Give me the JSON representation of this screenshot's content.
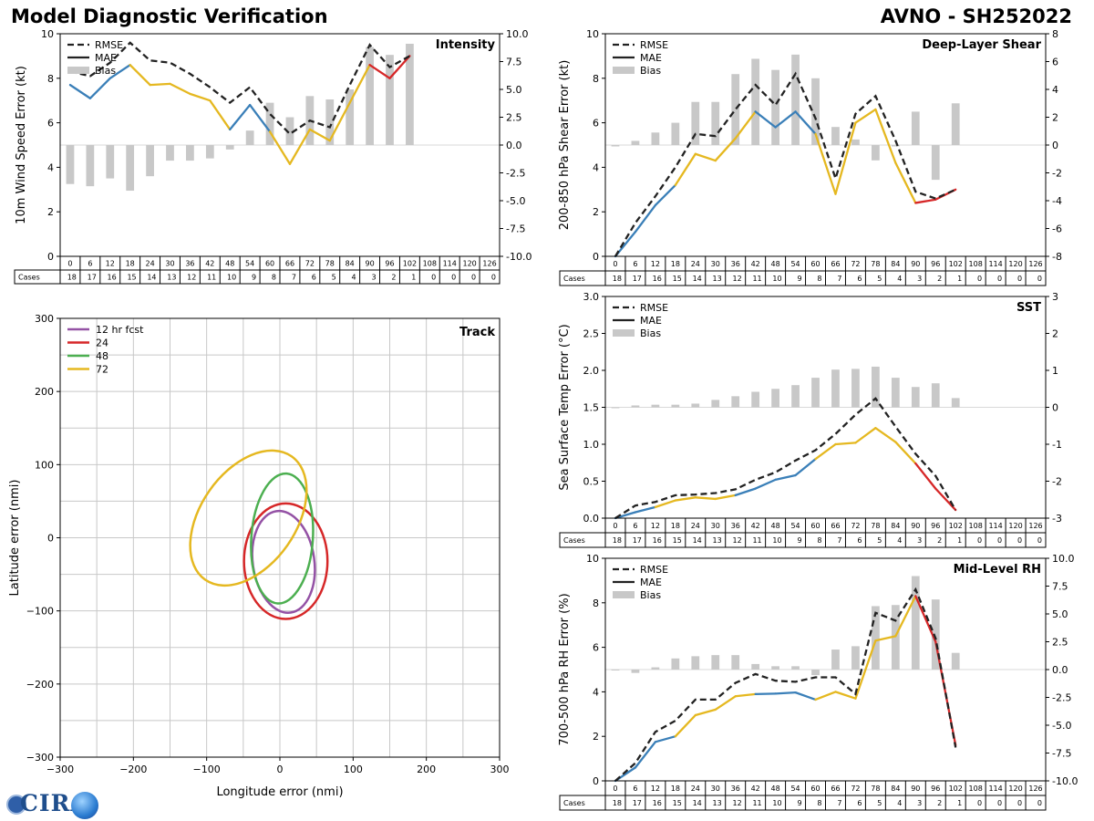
{
  "header": {
    "title_left": "Model Diagnostic Verification",
    "title_right": "AVNO - SH252022"
  },
  "logo": {
    "text": "CIRA"
  },
  "colors": {
    "rmse": "#222222",
    "bias": "#c8c8c8",
    "blue": "#3a7fb8",
    "yellow": "#e5b820",
    "red": "#d62728",
    "purple": "#9452a5",
    "green": "#4caf50",
    "grid": "#c8c8c8"
  },
  "chart_data": [
    {
      "id": "intensity",
      "type": "line",
      "title": "Intensity",
      "ylabel": "10m Wind Speed Error (kt)",
      "ylim": [
        0,
        10
      ],
      "yticks": [
        0,
        2,
        4,
        6,
        8,
        10
      ],
      "y2lim": [
        -10,
        10
      ],
      "y2ticks": [
        "-10.0",
        "-7.5",
        "-5.0",
        "-2.5",
        "0.0",
        "2.5",
        "5.0",
        "7.5",
        "10.0"
      ],
      "legend": [
        "RMSE",
        "MAE",
        "Bias"
      ],
      "x": [
        0,
        6,
        12,
        18,
        24,
        30,
        36,
        42,
        48,
        54,
        60,
        66,
        72,
        78,
        84,
        90,
        96,
        102,
        108,
        114,
        120,
        126
      ],
      "cases": [
        18,
        17,
        16,
        15,
        14,
        13,
        12,
        11,
        10,
        9,
        8,
        7,
        6,
        5,
        4,
        3,
        2,
        1,
        0,
        0,
        0,
        0
      ],
      "rmse": [
        8.3,
        8.1,
        8.7,
        9.6,
        8.8,
        8.7,
        8.2,
        7.6,
        6.9,
        7.6,
        6.4,
        5.5,
        6.1,
        5.8,
        7.7,
        9.5,
        8.5,
        9.0
      ],
      "mae": [
        7.7,
        7.1,
        8.0,
        8.6,
        7.7,
        7.75,
        7.3,
        7.0,
        5.7,
        6.8,
        5.6,
        4.15,
        5.7,
        5.2,
        6.9,
        8.6,
        8.0,
        9.0
      ],
      "bias": [
        -3.5,
        -3.7,
        -3.0,
        -4.1,
        -2.8,
        -1.4,
        -1.4,
        -1.2,
        -0.4,
        1.3,
        3.8,
        2.5,
        4.4,
        4.1,
        5.0,
        8.8,
        8.1,
        9.1
      ]
    },
    {
      "id": "shear",
      "type": "line",
      "title": "Deep-Layer Shear",
      "ylabel": "200-850 hPa Shear Error (kt)",
      "ylim": [
        0,
        10
      ],
      "yticks": [
        0,
        2,
        4,
        6,
        8,
        10
      ],
      "y2lim": [
        -8,
        8
      ],
      "y2ticks": [
        "-8",
        "-6",
        "-4",
        "-2",
        "0",
        "2",
        "4",
        "6",
        "8"
      ],
      "legend": [
        "RMSE",
        "MAE",
        "Bias"
      ],
      "x": [
        0,
        6,
        12,
        18,
        24,
        30,
        36,
        42,
        48,
        54,
        60,
        66,
        72,
        78,
        84,
        90,
        96,
        102,
        108,
        114,
        120,
        126
      ],
      "cases": [
        18,
        17,
        16,
        15,
        14,
        13,
        12,
        11,
        10,
        9,
        8,
        7,
        6,
        5,
        4,
        3,
        2,
        1,
        0,
        0,
        0,
        0
      ],
      "rmse": [
        0.0,
        1.5,
        2.7,
        4.0,
        5.5,
        5.4,
        6.6,
        7.7,
        6.8,
        8.2,
        6.2,
        3.5,
        6.4,
        7.2,
        5.2,
        2.9,
        2.6,
        3.0
      ],
      "mae": [
        0.0,
        1.1,
        2.3,
        3.2,
        4.6,
        4.3,
        5.3,
        6.5,
        5.8,
        6.5,
        5.5,
        2.8,
        6.0,
        6.6,
        4.2,
        2.4,
        2.55,
        3.0
      ],
      "bias": [
        -0.1,
        0.3,
        0.9,
        1.6,
        3.1,
        3.1,
        5.1,
        6.2,
        5.4,
        6.5,
        4.8,
        1.3,
        0.4,
        -1.1,
        -0.1,
        2.4,
        -2.5,
        3.0
      ]
    },
    {
      "id": "sst",
      "type": "line",
      "title": "SST",
      "ylabel": "Sea Surface Temp Error (°C)",
      "ylim": [
        0,
        3
      ],
      "yticks": [
        "0.0",
        "0.5",
        "1.0",
        "1.5",
        "2.0",
        "2.5",
        "3.0"
      ],
      "y2lim": [
        -3,
        3
      ],
      "y2ticks": [
        "-3",
        "-2",
        "-1",
        "0",
        "1",
        "2",
        "3"
      ],
      "legend": [
        "RMSE",
        "MAE",
        "Bias"
      ],
      "x": [
        0,
        6,
        12,
        18,
        24,
        30,
        36,
        42,
        48,
        54,
        60,
        66,
        72,
        78,
        84,
        90,
        96,
        102,
        108,
        114,
        120,
        126
      ],
      "cases": [
        18,
        17,
        16,
        15,
        14,
        13,
        12,
        11,
        10,
        9,
        8,
        7,
        6,
        5,
        4,
        3,
        2,
        1,
        0,
        0,
        0,
        0
      ],
      "rmse": [
        0.0,
        0.17,
        0.22,
        0.31,
        0.32,
        0.34,
        0.39,
        0.52,
        0.62,
        0.78,
        0.92,
        1.14,
        1.4,
        1.62,
        1.24,
        0.87,
        0.57,
        0.11
      ],
      "mae": [
        0.0,
        0.08,
        0.15,
        0.24,
        0.28,
        0.26,
        0.31,
        0.4,
        0.52,
        0.58,
        0.8,
        1.0,
        1.02,
        1.22,
        1.03,
        0.74,
        0.4,
        0.11
      ],
      "bias": [
        0.0,
        0.05,
        0.07,
        0.07,
        0.1,
        0.2,
        0.3,
        0.42,
        0.5,
        0.6,
        0.8,
        1.02,
        1.04,
        1.1,
        0.8,
        0.55,
        0.65,
        0.25
      ]
    },
    {
      "id": "rh",
      "type": "line",
      "title": "Mid-Level RH",
      "ylabel": "700-500 hPa RH Error (%)",
      "ylim": [
        0,
        10
      ],
      "yticks": [
        0,
        2,
        4,
        6,
        8,
        10
      ],
      "y2lim": [
        -10,
        10
      ],
      "y2ticks": [
        "-10.0",
        "-7.5",
        "-5.0",
        "-2.5",
        "0.0",
        "2.5",
        "5.0",
        "7.5",
        "10.0"
      ],
      "legend": [
        "RMSE",
        "MAE",
        "Bias"
      ],
      "x": [
        0,
        6,
        12,
        18,
        24,
        30,
        36,
        42,
        48,
        54,
        60,
        66,
        72,
        78,
        84,
        90,
        96,
        102,
        108,
        114,
        120,
        126
      ],
      "cases": [
        18,
        17,
        16,
        15,
        14,
        13,
        12,
        11,
        10,
        9,
        8,
        7,
        6,
        5,
        4,
        3,
        2,
        1,
        0,
        0,
        0,
        0
      ],
      "rmse": [
        0.0,
        0.8,
        2.2,
        2.7,
        3.65,
        3.65,
        4.4,
        4.8,
        4.5,
        4.45,
        4.65,
        4.65,
        3.9,
        7.55,
        7.2,
        8.6,
        6.4,
        1.5
      ],
      "mae": [
        0.0,
        0.6,
        1.75,
        2.0,
        2.95,
        3.2,
        3.8,
        3.9,
        3.92,
        3.97,
        3.65,
        4.0,
        3.7,
        6.3,
        6.5,
        8.3,
        6.25,
        1.6
      ],
      "bias": [
        -0.05,
        -0.3,
        0.2,
        1.0,
        1.2,
        1.3,
        1.3,
        0.5,
        0.3,
        0.3,
        -0.5,
        1.8,
        2.1,
        5.7,
        5.8,
        8.4,
        6.3,
        1.5
      ]
    },
    {
      "id": "track",
      "type": "scatter",
      "title": "Track",
      "xlabel": "Longitude error (nmi)",
      "ylabel": "Latitude error (nmi)",
      "xlim": [
        -300,
        300
      ],
      "ylim": [
        -300,
        300
      ],
      "xticks": [
        "−300",
        "−200",
        "−100",
        "0",
        "100",
        "200",
        "300"
      ],
      "yticks": [
        "−300",
        "−200",
        "−100",
        "0",
        "100",
        "200",
        "300"
      ],
      "legend": [
        "12 hr fcst",
        "24",
        "48",
        "72"
      ],
      "ellipses": [
        {
          "label": "12 hr fcst",
          "cx": 5,
          "cy": -33,
          "rx": 42,
          "ry": 70,
          "angle": 8
        },
        {
          "label": "24",
          "cx": 8,
          "cy": -32,
          "rx": 57,
          "ry": 79,
          "angle": 0
        },
        {
          "label": "48",
          "cx": 3,
          "cy": -1,
          "rx": 42,
          "ry": 89,
          "angle": -4
        },
        {
          "label": "72",
          "cx": -43,
          "cy": 27,
          "rx": 65,
          "ry": 103,
          "angle": -35
        }
      ]
    }
  ]
}
